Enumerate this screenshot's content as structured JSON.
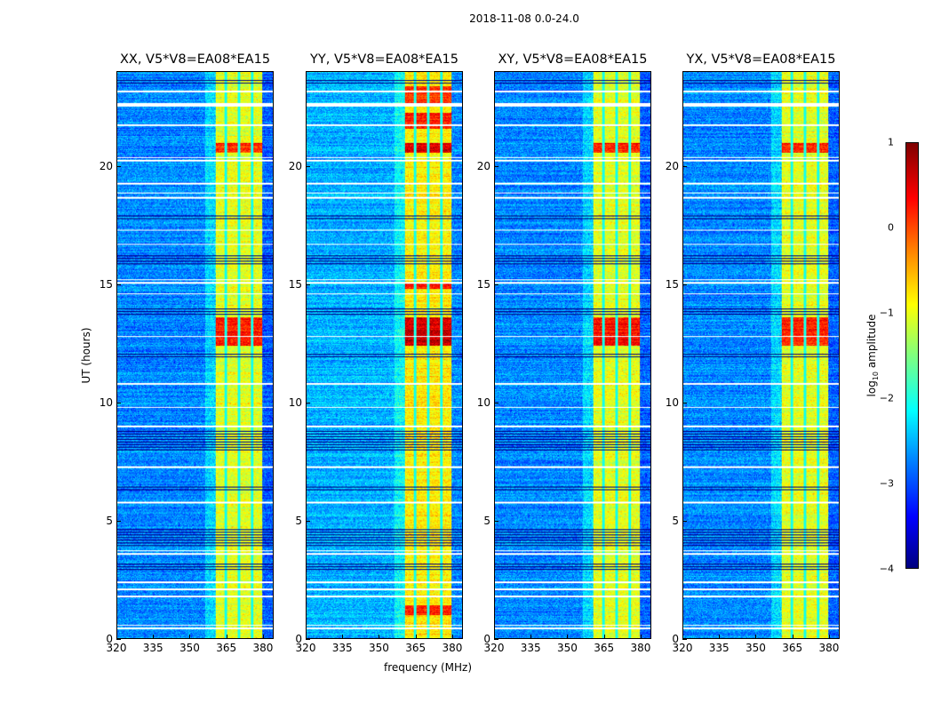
{
  "suptitle": "2018-11-08 0.0-24.0",
  "xlabel": "frequency (MHz)",
  "ylabel": "UT (hours)",
  "colorbar": {
    "label_pre": "log",
    "label_sub": "10",
    "label_post": " amplitude",
    "ticks": [
      "1",
      "0",
      "−1",
      "−2",
      "−3",
      "−4"
    ],
    "range": [
      -4,
      1
    ],
    "colormap": "jet"
  },
  "chart_data": {
    "type": "heatmap",
    "title": "2018-11-08 0.0-24.0",
    "xlabel": "frequency (MHz)",
    "ylabel": "UT (hours)",
    "xlim": [
      320,
      384.4
    ],
    "ylim": [
      0,
      24
    ],
    "xticks": [
      "320",
      "335",
      "350",
      "365",
      "380"
    ],
    "yticks": [
      "0",
      "5",
      "10",
      "15",
      "20"
    ],
    "zlim": [
      -4,
      1
    ],
    "panels": [
      {
        "title": "XX, V5*V8=EA08*EA15",
        "background_level": -2.7,
        "rfi_band_level": -1.0,
        "hot_times": [
          [
            12.4,
            13.6,
            0.3
          ],
          [
            20.6,
            21.0,
            0.2
          ]
        ]
      },
      {
        "title": "YY, V5*V8=EA08*EA15",
        "background_level": -2.5,
        "rfi_band_level": -0.8,
        "hot_times": [
          [
            12.4,
            13.6,
            0.6
          ],
          [
            14.8,
            15.1,
            0.3
          ],
          [
            20.6,
            21.0,
            0.5
          ],
          [
            21.6,
            22.3,
            0.2
          ],
          [
            22.7,
            23.4,
            0.1
          ],
          [
            1.0,
            1.4,
            0.2
          ]
        ]
      },
      {
        "title": "XY, V5*V8=EA08*EA15",
        "background_level": -2.7,
        "rfi_band_level": -1.0,
        "hot_times": [
          [
            12.4,
            13.6,
            0.3
          ],
          [
            20.6,
            21.0,
            0.2
          ]
        ]
      },
      {
        "title": "YX, V5*V8=EA08*EA15",
        "background_level": -2.7,
        "rfi_band_level": -1.0,
        "hot_times": [
          [
            12.4,
            13.6,
            0.2
          ],
          [
            20.6,
            21.0,
            0.2
          ]
        ]
      }
    ],
    "rfi_band_mhz": [
      360.5,
      380.0
    ],
    "rfi_subchannel_gaps_mhz": [
      364.8,
      370.3,
      375.5
    ],
    "flagged_times_hours": [
      0.45,
      0.55,
      1.8,
      2.1,
      2.4,
      3.6,
      3.7,
      5.8,
      7.3,
      9.0,
      9.8,
      10.8,
      12.8,
      14.6,
      15.1,
      15.2,
      16.7,
      17.3,
      18.7,
      18.9,
      19.3,
      20.3,
      20.4,
      21.8,
      22.6,
      22.7,
      23.2
    ],
    "dark_times_hours": [
      [
        3.9,
        4.7
      ],
      [
        8.0,
        8.8
      ],
      [
        6.2,
        6.5
      ],
      [
        2.9,
        3.2
      ],
      [
        15.8,
        16.3
      ],
      [
        17.8,
        18.0
      ],
      [
        13.7,
        14.0
      ],
      [
        11.9,
        12.1
      ],
      [
        23.5,
        23.7
      ]
    ]
  }
}
